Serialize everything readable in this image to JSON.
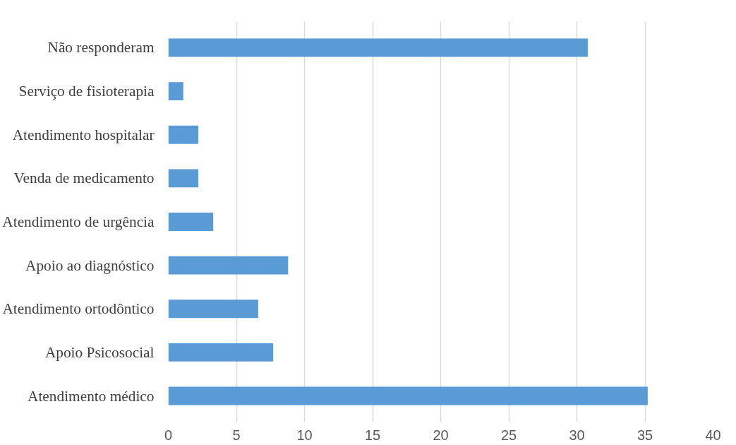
{
  "chart_data": {
    "type": "bar",
    "orientation": "horizontal",
    "categories": [
      "Não responderam",
      "Serviço de fisioterapia",
      "Atendimento hospitalar",
      "Venda de medicamento",
      "Atendimento de urgência",
      "Apoio ao diagnóstico",
      "Atendimento ortodôntico",
      "Apoio Psicosocial",
      "Atendimento médico"
    ],
    "values": [
      30.8,
      1.1,
      2.2,
      2.2,
      3.3,
      8.8,
      6.6,
      7.7,
      35.2
    ],
    "color": "#5b9bd5",
    "xlim": [
      0,
      40
    ],
    "xticks": [
      0,
      5,
      10,
      15,
      20,
      25,
      30,
      35,
      40
    ],
    "grid": "x"
  }
}
